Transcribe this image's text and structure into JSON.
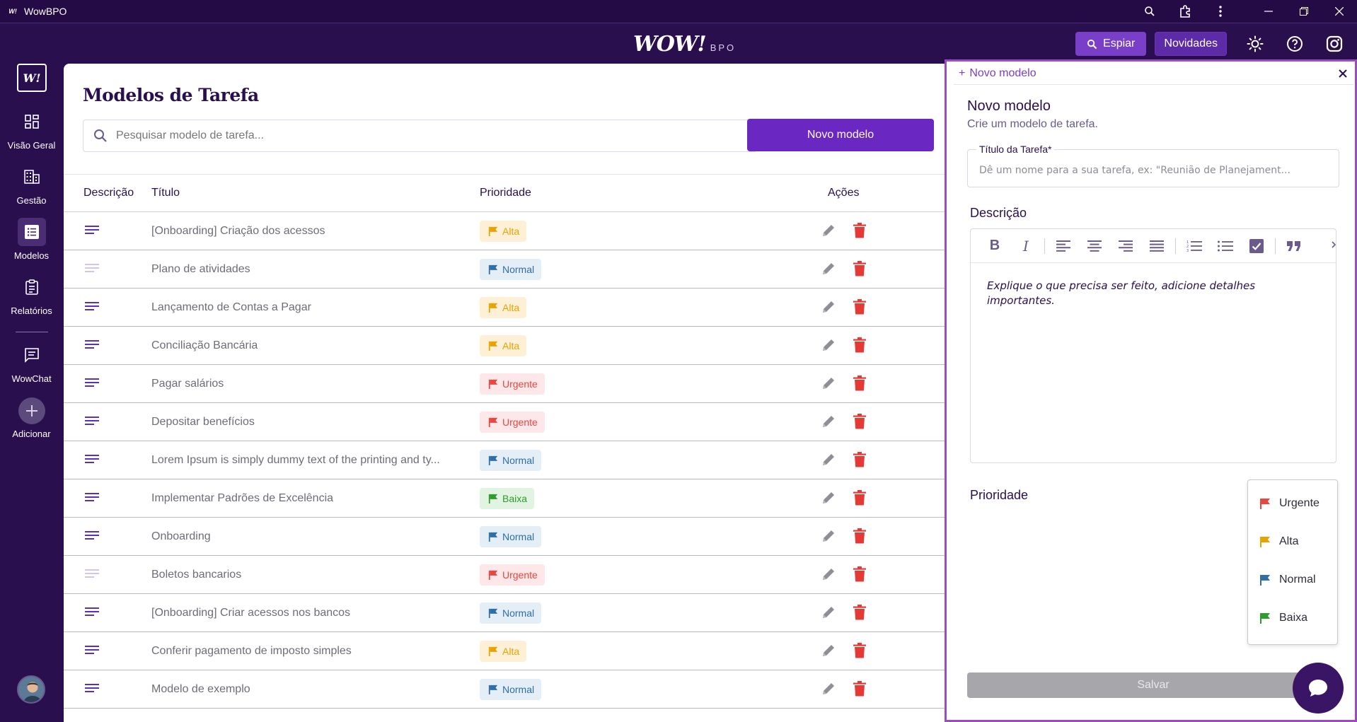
{
  "window": {
    "title": "WowBPO",
    "logo_text": "W!"
  },
  "topbar": {
    "brand": "WOW!",
    "brand_suffix": "BPO",
    "espiar_label": "Espiar",
    "novidades_label": "Novidades"
  },
  "sidebar": {
    "logo_text": "W!",
    "items": [
      {
        "label": "Visão Geral",
        "icon": "grid-icon"
      },
      {
        "label": "Gestão",
        "icon": "building-icon"
      },
      {
        "label": "Modelos",
        "icon": "list-icon"
      },
      {
        "label": "Relatórios",
        "icon": "clipboard-icon"
      },
      {
        "label": "WowChat",
        "icon": "chat-icon"
      },
      {
        "label": "Adicionar",
        "icon": "plus-icon"
      }
    ],
    "active": "Modelos"
  },
  "main": {
    "title": "Modelos de Tarefa",
    "search_placeholder": "Pesquisar modelo de tarefa...",
    "new_button": "Novo modelo",
    "columns": [
      "Descrição",
      "Título",
      "Prioridade",
      "Ações"
    ],
    "rows": [
      {
        "title": "[Onboarding] Criação dos acessos",
        "priority": "Alta",
        "has_description": true
      },
      {
        "title": "Plano de atividades",
        "priority": "Normal",
        "has_description": false
      },
      {
        "title": "Lançamento de Contas a Pagar",
        "priority": "Alta",
        "has_description": true
      },
      {
        "title": "Conciliação Bancária",
        "priority": "Alta",
        "has_description": true
      },
      {
        "title": "Pagar salários",
        "priority": "Urgente",
        "has_description": true
      },
      {
        "title": "Depositar benefícios",
        "priority": "Urgente",
        "has_description": true
      },
      {
        "title": "Lorem Ipsum is simply dummy text of the printing and ty...",
        "priority": "Normal",
        "has_description": true
      },
      {
        "title": "Implementar Padrões de Excelência",
        "priority": "Baixa",
        "has_description": true
      },
      {
        "title": "Onboarding",
        "priority": "Normal",
        "has_description": true
      },
      {
        "title": "Boletos bancarios",
        "priority": "Urgente",
        "has_description": false
      },
      {
        "title": "[Onboarding] Criar acessos nos bancos",
        "priority": "Normal",
        "has_description": true
      },
      {
        "title": "Conferir pagamento de imposto simples",
        "priority": "Alta",
        "has_description": true
      },
      {
        "title": "Modelo de exemplo",
        "priority": "Normal",
        "has_description": true
      }
    ]
  },
  "panel": {
    "tab_label": "Novo modelo",
    "title": "Novo modelo",
    "subtitle": "Crie um modelo de tarefa.",
    "task_title_label": "Título da Tarefa*",
    "task_title_placeholder": "Dê um nome para a sua tarefa, ex: \"Reunião de Planejament...",
    "description_label": "Descrição",
    "description_placeholder": "Explique o que precisa ser feito, adicione detalhes importantes.",
    "toolbar": [
      "B",
      "I"
    ],
    "priority_label": "Prioridade",
    "priority_options": [
      "Urgente",
      "Alta",
      "Normal",
      "Baixa"
    ],
    "save_label": "Salvar"
  },
  "colors": {
    "brand_dark": "#2a0f4e",
    "accent": "#6a27c2",
    "urgente": "#e9473f",
    "alta": "#e9a300",
    "normal": "#2f6ea7",
    "baixa": "#2d9b2d"
  }
}
